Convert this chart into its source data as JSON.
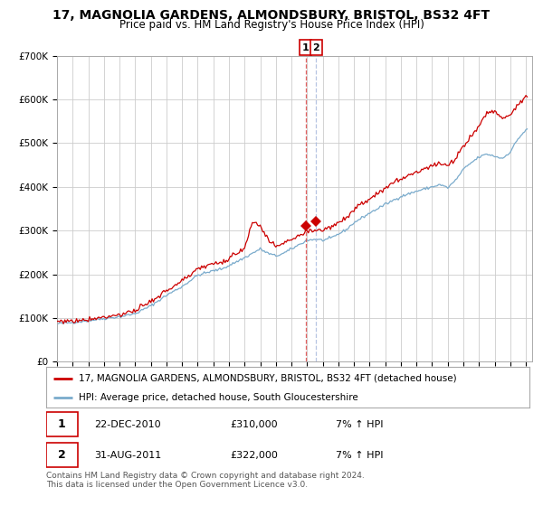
{
  "title": "17, MAGNOLIA GARDENS, ALMONDSBURY, BRISTOL, BS32 4FT",
  "subtitle": "Price paid vs. HM Land Registry's House Price Index (HPI)",
  "ylim": [
    0,
    700000
  ],
  "yticks": [
    0,
    100000,
    200000,
    300000,
    400000,
    500000,
    600000,
    700000
  ],
  "ytick_labels": [
    "£0",
    "£100K",
    "£200K",
    "£300K",
    "£400K",
    "£500K",
    "£600K",
    "£700K"
  ],
  "background_color": "#ffffff",
  "plot_bg_color": "#ffffff",
  "grid_color": "#cccccc",
  "red_line_color": "#cc0000",
  "blue_line_color": "#7aabcc",
  "sale1_t": 2010.9167,
  "sale1_price": 310000,
  "sale2_t": 2011.5833,
  "sale2_price": 322000,
  "vline1_color": "#dd4444",
  "vline2_color": "#aabbdd",
  "legend_red_label": "17, MAGNOLIA GARDENS, ALMONDSBURY, BRISTOL, BS32 4FT (detached house)",
  "legend_blue_label": "HPI: Average price, detached house, South Gloucestershire",
  "note1_date": "22-DEC-2010",
  "note1_price": "£310,000",
  "note1_hpi": "7% ↑ HPI",
  "note2_date": "31-AUG-2011",
  "note2_price": "£322,000",
  "note2_hpi": "7% ↑ HPI",
  "footer": "Contains HM Land Registry data © Crown copyright and database right 2024.\nThis data is licensed under the Open Government Licence v3.0.",
  "title_fontsize": 10,
  "subtitle_fontsize": 8.5,
  "tick_fontsize": 7.5,
  "legend_fontsize": 7.5,
  "note_fontsize": 8,
  "footer_fontsize": 6.5
}
